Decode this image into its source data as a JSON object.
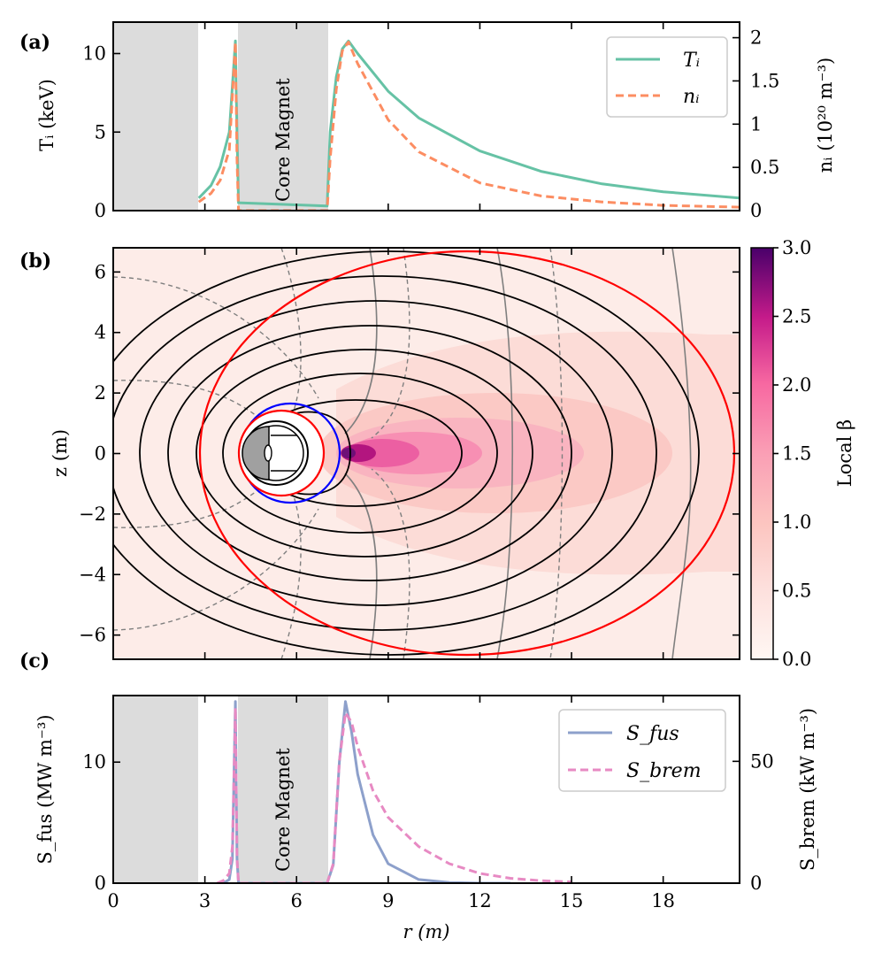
{
  "chart_data": [
    {
      "panel": "(a)",
      "type": "line",
      "region_label": "Core Magnet",
      "shaded_regions_r": [
        [
          0,
          2.8
        ],
        [
          4.1,
          7.0
        ]
      ],
      "xlim": [
        0,
        20.5
      ],
      "ylim_left": [
        0,
        12
      ],
      "ylim_right": [
        0,
        2.18
      ],
      "yticks_left": [
        "0",
        "5",
        "10"
      ],
      "yticks_right": [
        "0",
        "0.5",
        "1",
        "1.5",
        "2"
      ],
      "ylabel_left": "Tᵢ (keV)",
      "ylabel_right": "nᵢ (10²⁰ m⁻³)",
      "legend": {
        "placement": "top-right",
        "entries": [
          "Tᵢ",
          "nᵢ"
        ]
      },
      "series": [
        {
          "name": "Tᵢ",
          "axis": "left",
          "color": "#66c2a5",
          "style": "solid",
          "r": [
            2.8,
            3.2,
            3.5,
            3.8,
            4.0,
            4.05,
            4.1,
            7.0,
            7.1,
            7.3,
            7.5,
            7.7,
            8.0,
            9.0,
            10.0,
            12.0,
            14.0,
            16.0,
            18.0,
            20.5
          ],
          "values": [
            0.8,
            1.6,
            2.8,
            5.0,
            10.8,
            5.0,
            0.5,
            0.3,
            5.0,
            8.5,
            10.3,
            10.8,
            10.0,
            7.6,
            5.9,
            3.8,
            2.5,
            1.7,
            1.2,
            0.8
          ]
        },
        {
          "name": "nᵢ",
          "axis": "right",
          "color": "#fc8d62",
          "style": "dashed",
          "r": [
            2.8,
            3.2,
            3.5,
            3.8,
            4.0,
            4.05,
            4.1,
            7.0,
            7.1,
            7.3,
            7.5,
            7.7,
            8.0,
            9.0,
            10.0,
            12.0,
            14.0,
            16.0,
            18.0,
            20.5
          ],
          "values": [
            0.1,
            0.2,
            0.35,
            0.7,
            1.95,
            0.6,
            0.0,
            0.0,
            0.6,
            1.4,
            1.85,
            1.95,
            1.7,
            1.05,
            0.68,
            0.32,
            0.17,
            0.1,
            0.06,
            0.04
          ]
        }
      ]
    },
    {
      "panel": "(b)",
      "type": "heatmap",
      "xlim": [
        0,
        20.5
      ],
      "ylim": [
        -6.8,
        6.8
      ],
      "yticks": [
        "−6",
        "−4",
        "−2",
        "0",
        "2",
        "4",
        "6"
      ],
      "ylabel": "z (m)",
      "colorbar": {
        "label": "Local β",
        "cmap": "RdPu",
        "range": [
          0,
          3.0
        ],
        "ticks": [
          "0.0",
          "0.5",
          "1.0",
          "1.5",
          "2.0",
          "2.5",
          "3.0"
        ]
      },
      "boundaries": [
        {
          "name": "outer separatrix",
          "color": "#ff0000",
          "r_range": [
            2.8,
            20.0
          ],
          "z_half": 6.7
        },
        {
          "name": "inner boundary",
          "color": "#ff0000",
          "center_r": 5.5,
          "radius": 1.3
        },
        {
          "name": "coil boundary",
          "color": "#0000ff",
          "center_r": 5.7,
          "radius": 1.6
        }
      ],
      "beta_peak": {
        "r": 7.6,
        "z": 0,
        "value": 2.9
      }
    },
    {
      "panel": "(c)",
      "type": "line",
      "region_label": "Core Magnet",
      "shaded_regions_r": [
        [
          0,
          2.8
        ],
        [
          4.1,
          7.0
        ]
      ],
      "xlim": [
        0,
        20.5
      ],
      "xticks": [
        "0",
        "3",
        "6",
        "9",
        "12",
        "15",
        "18"
      ],
      "xlabel": "r (m)",
      "ylim_left": [
        0,
        15.5
      ],
      "ylim_right": [
        0,
        77
      ],
      "yticks_left": [
        "0",
        "10"
      ],
      "yticks_right": [
        "0",
        "50"
      ],
      "ylabel_left": "S_fus (MW m⁻³)",
      "ylabel_right": "S_brem (kW m⁻³)",
      "legend": {
        "placement": "top-right",
        "entries": [
          "S_fus",
          "S_brem"
        ]
      },
      "series": [
        {
          "name": "S_fus",
          "axis": "left",
          "color": "#8da0cb",
          "style": "solid",
          "r": [
            3.6,
            3.8,
            3.9,
            4.0,
            4.05,
            4.1,
            7.0,
            7.2,
            7.4,
            7.6,
            7.8,
            8.0,
            8.5,
            9.0,
            10.0,
            11.0,
            12.0,
            13.0
          ],
          "values": [
            0.0,
            0.3,
            2.0,
            15.0,
            2.0,
            0.0,
            0.0,
            1.5,
            10.0,
            15.0,
            12.5,
            9.0,
            4.0,
            1.6,
            0.3,
            0.05,
            0.0,
            0.0
          ]
        },
        {
          "name": "S_brem",
          "axis": "right",
          "color": "#e78ac3",
          "style": "dashed",
          "r": [
            3.4,
            3.6,
            3.8,
            3.9,
            4.0,
            4.05,
            4.1,
            7.0,
            7.2,
            7.4,
            7.6,
            7.8,
            8.0,
            8.5,
            9.0,
            10.0,
            11.0,
            12.0,
            13.0,
            14.0,
            15.0
          ],
          "values": [
            0.0,
            1.0,
            4.0,
            15.0,
            72.0,
            10.0,
            0.0,
            0.0,
            8.0,
            50.0,
            70.0,
            66.0,
            56.0,
            38.0,
            27.0,
            15.0,
            8.0,
            4.0,
            2.0,
            1.0,
            0.5
          ]
        }
      ]
    }
  ]
}
